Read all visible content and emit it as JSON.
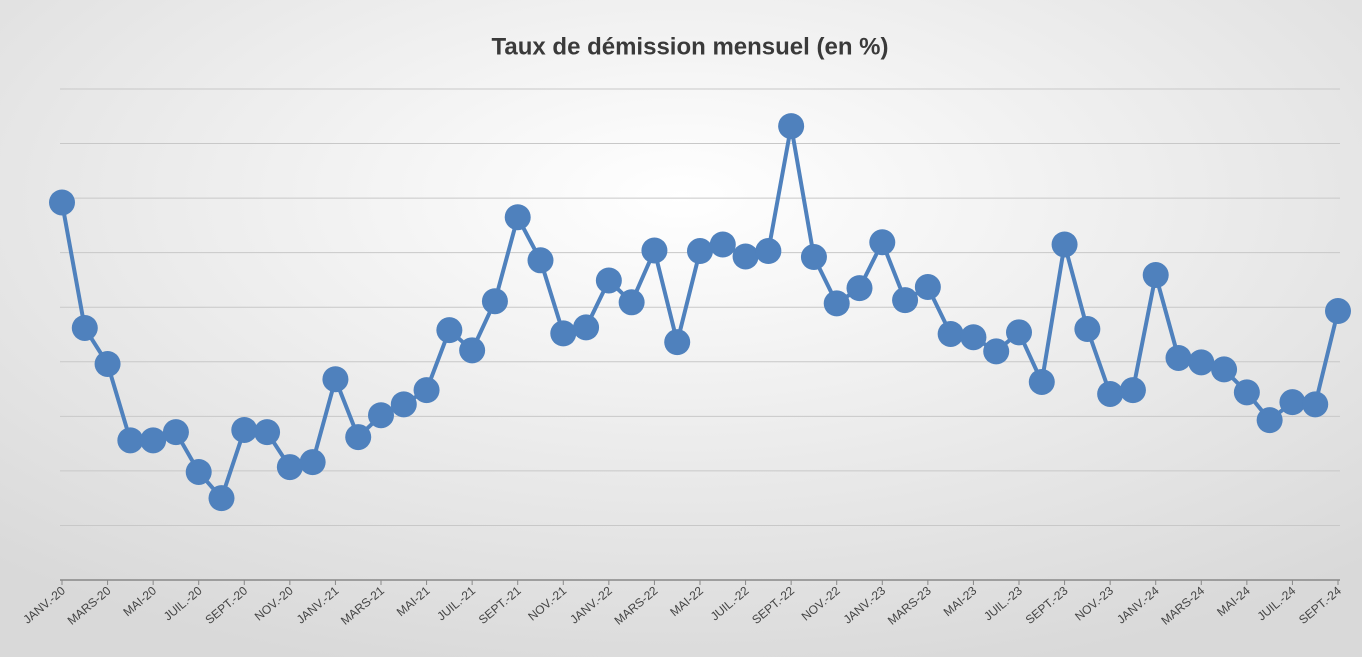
{
  "chart_data": {
    "type": "line",
    "title": "Taux de démission mensuel (en %)",
    "categories": [
      "JANV.-20",
      null,
      "MARS-20",
      null,
      "MAI-20",
      null,
      "JUIL.-20",
      null,
      "SEPT.-20",
      null,
      "NOV.-20",
      null,
      "JANV.-21",
      null,
      "MARS-21",
      null,
      "MAI-21",
      null,
      "JUIL.-21",
      null,
      "SEPT.-21",
      null,
      "NOV.-21",
      null,
      "JANV.-22",
      null,
      "MARS-22",
      null,
      "MAI-22",
      null,
      "JUIL.-22",
      null,
      "SEPT.-22",
      null,
      "NOV.-22",
      null,
      "JANV.-23",
      null,
      "MARS-23",
      null,
      "MAI-23",
      null,
      "JUIL.-23",
      null,
      "SEPT.-23",
      null,
      "NOV.-23",
      null,
      "JANV.-24",
      null,
      "MARS-24",
      null,
      "MAI-24",
      null,
      "JUIL.-24",
      null,
      "SEPT.-24"
    ],
    "series": [
      {
        "color": "#4f81bd",
        "values": [
          6.92,
          4.62,
          3.96,
          2.56,
          2.56,
          2.71,
          1.98,
          1.5,
          2.75,
          2.71,
          2.07,
          2.16,
          3.68,
          2.62,
          3.02,
          3.22,
          3.48,
          4.58,
          4.21,
          5.11,
          6.65,
          5.86,
          4.52,
          4.63,
          5.49,
          5.09,
          6.04,
          4.36,
          6.03,
          6.15,
          5.93,
          6.03,
          8.32,
          5.92,
          5.07,
          5.35,
          6.19,
          5.13,
          5.37,
          4.51,
          4.45,
          4.19,
          4.54,
          3.63,
          6.15,
          4.6,
          3.41,
          3.48,
          5.59,
          4.07,
          3.99,
          3.86,
          3.44,
          2.93,
          3.26,
          3.22,
          4.93
        ]
      }
    ],
    "ylim": [
      0,
      9
    ],
    "yticks": [
      0,
      1,
      2,
      3,
      4,
      5,
      6,
      7,
      8,
      9
    ],
    "grid": true
  }
}
